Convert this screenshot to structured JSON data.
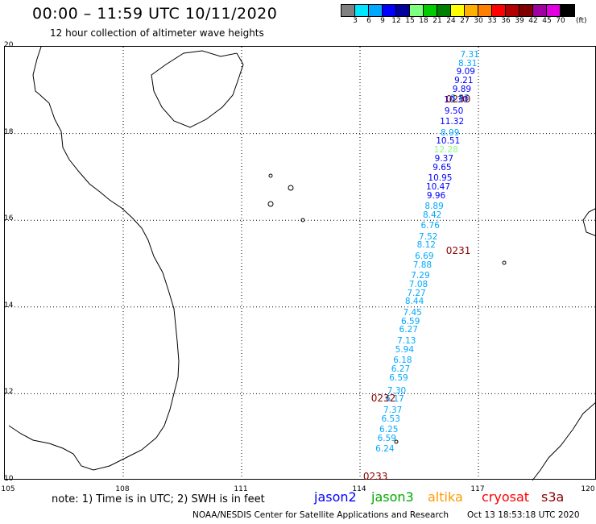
{
  "header": {
    "title": "00:00 – 11:59 UTC 10/11/2020",
    "subtitle": "12 hour collection of altimeter wave heights"
  },
  "colorbar": {
    "unit": "(ft)",
    "ticks": [
      "3",
      "6",
      "9",
      "12",
      "15",
      "18",
      "21",
      "24",
      "27",
      "30",
      "33",
      "36",
      "39",
      "42",
      "45",
      "70"
    ],
    "colors": [
      "#808080",
      "#00e5ff",
      "#00a8ff",
      "#0000ff",
      "#00009c",
      "#7fff7f",
      "#00cc00",
      "#008000",
      "#ffff00",
      "#ffb000",
      "#ff7f00",
      "#ff0000",
      "#b00000",
      "#800000",
      "#a000a0",
      "#e000e0",
      "#000000"
    ]
  },
  "axes": {
    "y_ticks": [
      "20",
      "18",
      "16",
      "14",
      "12",
      "10"
    ],
    "x_ticks": [
      "105",
      "108",
      "111",
      "114",
      "117",
      "120"
    ]
  },
  "passes": [
    {
      "label": "0230",
      "lat": 18.8,
      "lon": 116.2
    },
    {
      "label": "0231",
      "lat": 15.3,
      "lon": 116.2
    },
    {
      "label": "0232",
      "lat": 11.9,
      "lon": 114.3
    },
    {
      "label": "0233",
      "lat": 10.1,
      "lon": 114.1
    }
  ],
  "chart_data": {
    "type": "scatter",
    "x_range": [
      105,
      120
    ],
    "y_range": [
      10,
      20
    ],
    "observations": [
      {
        "v": "7.31",
        "lat": 19.8,
        "lon": 116.8,
        "c": "#00a8ff"
      },
      {
        "v": "8.31",
        "lat": 19.6,
        "lon": 116.75,
        "c": "#00a8ff"
      },
      {
        "v": "9.09",
        "lat": 19.4,
        "lon": 116.7,
        "c": "#0000ff"
      },
      {
        "v": "9.21",
        "lat": 19.2,
        "lon": 116.65,
        "c": "#0000ff"
      },
      {
        "v": "9.89",
        "lat": 19.0,
        "lon": 116.6,
        "c": "#0000ff"
      },
      {
        "v": "8.85",
        "lat": 18.8,
        "lon": 116.55,
        "c": "#00a8ff"
      },
      {
        "v": "10.30",
        "lat": 18.75,
        "lon": 116.45,
        "c": "#0000ff"
      },
      {
        "v": "9.50",
        "lat": 18.5,
        "lon": 116.4,
        "c": "#0000ff"
      },
      {
        "v": "11.32",
        "lat": 18.25,
        "lon": 116.35,
        "c": "#0000ff"
      },
      {
        "v": "8.99",
        "lat": 18.0,
        "lon": 116.3,
        "c": "#00a8ff"
      },
      {
        "v": "10.51",
        "lat": 17.8,
        "lon": 116.25,
        "c": "#0000ff"
      },
      {
        "v": "12.28",
        "lat": 17.6,
        "lon": 116.2,
        "c": "#7fff7f"
      },
      {
        "v": "9.37",
        "lat": 17.4,
        "lon": 116.15,
        "c": "#0000ff"
      },
      {
        "v": "9.65",
        "lat": 17.2,
        "lon": 116.1,
        "c": "#0000ff"
      },
      {
        "v": "10.95",
        "lat": 16.95,
        "lon": 116.05,
        "c": "#0000ff"
      },
      {
        "v": "10.47",
        "lat": 16.75,
        "lon": 116.0,
        "c": "#0000ff"
      },
      {
        "v": "9.96",
        "lat": 16.55,
        "lon": 115.95,
        "c": "#0000ff"
      },
      {
        "v": "8.89",
        "lat": 16.3,
        "lon": 115.9,
        "c": "#00a8ff"
      },
      {
        "v": "8.42",
        "lat": 16.1,
        "lon": 115.85,
        "c": "#00a8ff"
      },
      {
        "v": "6.76",
        "lat": 15.85,
        "lon": 115.8,
        "c": "#00a8ff"
      },
      {
        "v": "7.52",
        "lat": 15.6,
        "lon": 115.75,
        "c": "#00a8ff"
      },
      {
        "v": "8.12",
        "lat": 15.4,
        "lon": 115.7,
        "c": "#00a8ff"
      },
      {
        "v": "6.69",
        "lat": 15.15,
        "lon": 115.65,
        "c": "#00a8ff"
      },
      {
        "v": "7.88",
        "lat": 14.95,
        "lon": 115.6,
        "c": "#00a8ff"
      },
      {
        "v": "7.29",
        "lat": 14.7,
        "lon": 115.55,
        "c": "#00a8ff"
      },
      {
        "v": "7.08",
        "lat": 14.5,
        "lon": 115.5,
        "c": "#00a8ff"
      },
      {
        "v": "7.27",
        "lat": 14.3,
        "lon": 115.45,
        "c": "#00a8ff"
      },
      {
        "v": "8.44",
        "lat": 14.1,
        "lon": 115.4,
        "c": "#00a8ff"
      },
      {
        "v": "7.45",
        "lat": 13.85,
        "lon": 115.35,
        "c": "#00a8ff"
      },
      {
        "v": "6.59",
        "lat": 13.65,
        "lon": 115.3,
        "c": "#00a8ff"
      },
      {
        "v": "6.27",
        "lat": 13.45,
        "lon": 115.25,
        "c": "#00a8ff"
      },
      {
        "v": "7.13",
        "lat": 13.2,
        "lon": 115.2,
        "c": "#00a8ff"
      },
      {
        "v": "5.94",
        "lat": 13.0,
        "lon": 115.15,
        "c": "#00a8ff"
      },
      {
        "v": "6.18",
        "lat": 12.75,
        "lon": 115.1,
        "c": "#00a8ff"
      },
      {
        "v": "6.27",
        "lat": 12.55,
        "lon": 115.05,
        "c": "#00a8ff"
      },
      {
        "v": "6.59",
        "lat": 12.35,
        "lon": 115.0,
        "c": "#00a8ff"
      },
      {
        "v": "7.30",
        "lat": 12.05,
        "lon": 114.95,
        "c": "#00a8ff"
      },
      {
        "v": "6.17",
        "lat": 11.85,
        "lon": 114.9,
        "c": "#00a8ff"
      },
      {
        "v": "7.37",
        "lat": 11.6,
        "lon": 114.85,
        "c": "#00a8ff"
      },
      {
        "v": "6.53",
        "lat": 11.4,
        "lon": 114.8,
        "c": "#00a8ff"
      },
      {
        "v": "6.25",
        "lat": 11.15,
        "lon": 114.75,
        "c": "#00a8ff"
      },
      {
        "v": "6.59",
        "lat": 10.95,
        "lon": 114.7,
        "c": "#00a8ff"
      },
      {
        "v": "6.24",
        "lat": 10.7,
        "lon": 114.65,
        "c": "#00a8ff"
      }
    ]
  },
  "footer": {
    "note": "note:  1) Time is in UTC;  2) SWH is in feet",
    "satellites": [
      {
        "name": "jason2",
        "color": "#0000ff"
      },
      {
        "name": "jason3",
        "color": "#00aa00"
      },
      {
        "name": "altika",
        "color": "#ff9900"
      },
      {
        "name": "cryosat",
        "color": "#ff0000"
      },
      {
        "name": "s3a",
        "color": "#8b0000"
      }
    ],
    "credit": "NOAA/NESDIS Center for Satellite Applications and Research",
    "timestamp": "Oct 13 18:53:18 UTC 2020"
  }
}
